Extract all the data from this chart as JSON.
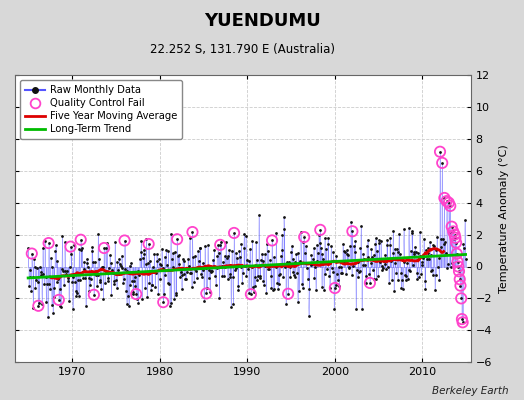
{
  "title": "YUENDUMU",
  "subtitle": "22.252 S, 131.790 E (Australia)",
  "ylabel": "Temperature Anomaly (°C)",
  "credit": "Berkeley Earth",
  "xlim": [
    1963.5,
    2015.5
  ],
  "ylim": [
    -6,
    12
  ],
  "yticks": [
    -6,
    -4,
    -2,
    0,
    2,
    4,
    6,
    8,
    10,
    12
  ],
  "xticks": [
    1970,
    1980,
    1990,
    2000,
    2010
  ],
  "background_color": "#d8d8d8",
  "plot_background": "#ffffff",
  "grid_color": "#cccccc",
  "raw_line_color": "#5555ff",
  "dot_color": "#111111",
  "qc_color": "#ff44cc",
  "moving_avg_color": "#dd0000",
  "trend_color": "#00bb00",
  "seed": 7
}
